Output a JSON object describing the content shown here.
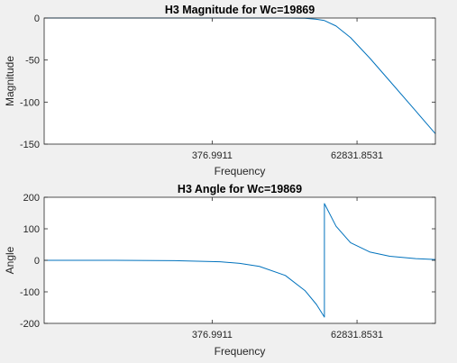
{
  "colors": {
    "figure_background": "#f0f0f0",
    "axes_background": "#ffffff",
    "axis_color": "#262626",
    "line_color": "#0072bd"
  },
  "chart_data": [
    {
      "type": "line",
      "title": "H3 Magnitude for Wc=19869",
      "xlabel": "Frequency",
      "ylabel": "Magnitude",
      "x_scale": "log",
      "xlim": [
        1,
        1000000
      ],
      "ylim": [
        -150,
        0
      ],
      "x_ticks": [
        376.9911,
        62831.8531
      ],
      "x_tick_labels": [
        "376.9911",
        "62831.8531"
      ],
      "y_ticks": [
        0,
        -50,
        -100,
        -150
      ],
      "y_tick_labels": [
        "0",
        "-50",
        "-100",
        "-150"
      ],
      "grid": false,
      "series": [
        {
          "x": [
            1,
            10,
            100,
            1000,
            5000,
            10000,
            15000,
            19869,
            30000,
            50000,
            100000,
            200000,
            500000,
            1000000
          ],
          "y": [
            0,
            0,
            0,
            0,
            -0.01,
            -0.3,
            -1.5,
            -3.0,
            -9.5,
            -23.3,
            -48.2,
            -75.0,
            -110.6,
            -137.6
          ]
        }
      ]
    },
    {
      "type": "line",
      "title": "H3 Angle for Wc=19869",
      "xlabel": "Frequency",
      "ylabel": "Angle",
      "x_scale": "log",
      "xlim": [
        1,
        1000000
      ],
      "ylim": [
        -200,
        200
      ],
      "x_ticks": [
        376.9911,
        62831.8531
      ],
      "x_tick_labels": [
        "376.9911",
        "62831.8531"
      ],
      "y_ticks": [
        200,
        100,
        0,
        -100,
        -200
      ],
      "y_tick_labels": [
        "200",
        "100",
        "0",
        "-100",
        "-200"
      ],
      "grid": false,
      "series": [
        {
          "x": [
            1,
            10,
            100,
            500,
            1000,
            2000,
            5000,
            10000,
            15000,
            19869,
            19870,
            30000,
            50000,
            100000,
            200000,
            500000,
            1000000
          ],
          "y": [
            -0.01,
            -0.1,
            -1.0,
            -4.8,
            -9.6,
            -19.2,
            -48.0,
            -96.0,
            -140.0,
            -180.0,
            180.0,
            108.0,
            56.0,
            26.0,
            13.0,
            5.2,
            2.4
          ]
        }
      ]
    }
  ]
}
